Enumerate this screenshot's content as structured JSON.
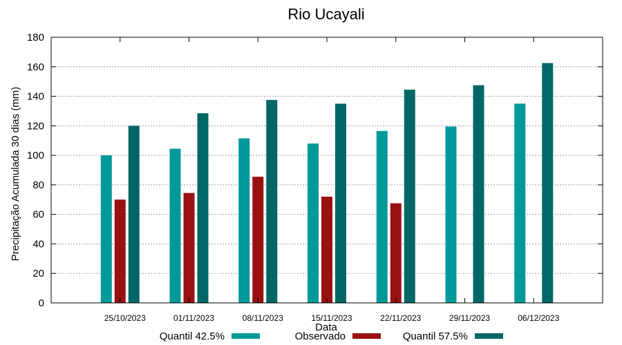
{
  "chart_data": {
    "type": "bar",
    "title": "Rio Ucayali",
    "xlabel": "Data",
    "ylabel": "Precipitação Acumulada 30 dias (mm)",
    "ylim": [
      0,
      180
    ],
    "yticks": [
      0,
      20,
      40,
      60,
      80,
      100,
      120,
      140,
      160,
      180
    ],
    "grid": true,
    "categories": [
      "25/10/2023",
      "01/11/2023",
      "08/11/2023",
      "15/11/2023",
      "22/11/2023",
      "29/11/2023",
      "06/12/2023"
    ],
    "series": [
      {
        "name": "Quantil 42.5%",
        "color": "#009999",
        "values": [
          100,
          104.5,
          111.5,
          108,
          116.5,
          119.5,
          135
        ]
      },
      {
        "name": "Observado",
        "color": "#991111",
        "values": [
          70,
          74.5,
          85.5,
          72,
          67.5,
          null,
          null
        ]
      },
      {
        "name": "Quantil 57.5%",
        "color": "#006666",
        "values": [
          120,
          128.5,
          137.5,
          135,
          144.5,
          147.5,
          162.5
        ]
      }
    ],
    "legend_position": "bottom"
  }
}
